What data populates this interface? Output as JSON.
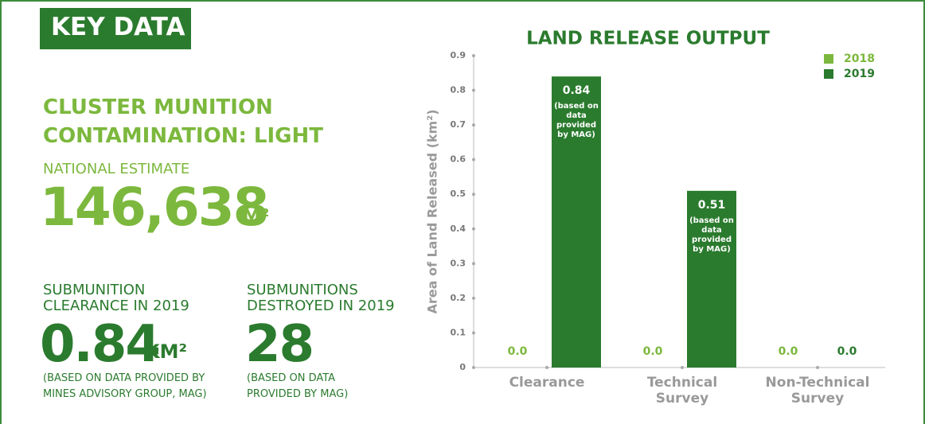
{
  "header": {
    "title": "KEY DATA"
  },
  "contamination": {
    "title_lines": [
      "CLUSTER MUNITION",
      "CONTAMINATION: LIGHT"
    ],
    "label": "NATIONAL ESTIMATE",
    "value": "146,638",
    "unit": "M²"
  },
  "clearance": {
    "label_lines": [
      "SUBMUNITION",
      "CLEARANCE IN 2019"
    ],
    "value": "0.84",
    "unit": "KM²",
    "note_lines": [
      "(BASED ON DATA PROVIDED BY",
      "MINES ADVISORY GROUP, MAG)"
    ]
  },
  "destroyed": {
    "label_lines": [
      "SUBMUNITIONS",
      "DESTROYED IN 2019"
    ],
    "value": "28",
    "note_lines": [
      "(BASED ON DATA",
      "PROVIDED BY MAG)"
    ]
  },
  "chart_data": {
    "type": "bar",
    "title": "LAND RELEASE OUTPUT",
    "y_label": "Area of Land Released (km²)",
    "categories": [
      "Clearance",
      "Technical Survey",
      "Non-Technical Survey"
    ],
    "series": [
      {
        "name": "2018",
        "color": "#7cb83d",
        "values": [
          0,
          0,
          0
        ],
        "value_labels": [
          "0.0",
          "0.0",
          "0.0"
        ]
      },
      {
        "name": "2019",
        "color": "#2b7b2e",
        "values": [
          0.84,
          0.51,
          0
        ],
        "value_labels": [
          "0.84",
          "0.51",
          "0.0"
        ]
      }
    ],
    "annotations": [
      {
        "series": "2019",
        "category": "Clearance",
        "text": "(based on data provided by MAG)"
      },
      {
        "series": "2019",
        "category": "Technical Survey",
        "text": "(based on data provided by MAG)"
      }
    ],
    "ylim": [
      0,
      0.9
    ],
    "yticks": [
      0,
      0.1,
      0.2,
      0.3,
      0.4,
      0.5,
      0.6,
      0.7,
      0.8,
      0.9
    ],
    "legend": "top-right"
  }
}
